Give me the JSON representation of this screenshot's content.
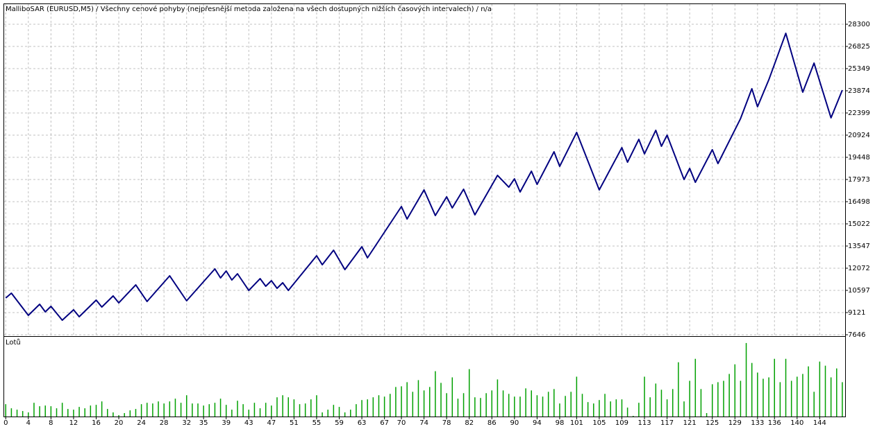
{
  "chart_data": [
    {
      "type": "line",
      "title": "MalliboSAR (EURUSD,M5) / Všechny cenové pohyby (nejpřesnější metoda založena na všech dostupných nižších časových intervalech) / n/a",
      "color": "#000080",
      "x": [
        0,
        1,
        4,
        6,
        7,
        8,
        10,
        12,
        13,
        16,
        17,
        19,
        20,
        23,
        25,
        29,
        32,
        37,
        38,
        39,
        40,
        41,
        43,
        45,
        46,
        47,
        48,
        49,
        50,
        55,
        56,
        58,
        60,
        63,
        64,
        70,
        71,
        74,
        76,
        78,
        79,
        81,
        83,
        87,
        89,
        90,
        91,
        93,
        94,
        97,
        98,
        101,
        105,
        109,
        110,
        112,
        113,
        115,
        116,
        117,
        120,
        121,
        122,
        125,
        126,
        130,
        132,
        133,
        135,
        138,
        141,
        143,
        146,
        148
      ],
      "values": [
        10089,
        10412,
        8937,
        9674,
        9167,
        9536,
        8614,
        9306,
        8845,
        9951,
        9490,
        10228,
        9767,
        10965,
        9859,
        11565,
        9905,
        12026,
        11426,
        11887,
        11288,
        11703,
        10596,
        11380,
        10873,
        11242,
        10735,
        11104,
        10596,
        12901,
        12302,
        13270,
        11979,
        13501,
        12763,
        16175,
        15345,
        17282,
        15575,
        16820,
        16082,
        17327,
        15621,
        18249,
        17465,
        18018,
        17143,
        18526,
        17650,
        19816,
        18848,
        21107,
        17281,
        20093,
        19125,
        20646,
        19678,
        21246,
        20185,
        20923,
        17973,
        18710,
        17788,
        19955,
        19033,
        22029,
        24012,
        22813,
        24610,
        27699,
        23781,
        25717,
        22075,
        23919
      ],
      "xlim": [
        -0.4,
        148.5
      ],
      "ylim": [
        7646,
        29683
      ],
      "yticks": [
        28300,
        26825,
        25349,
        23874,
        22399,
        20924,
        19448,
        17973,
        16498,
        15022,
        13547,
        12072,
        10597,
        9121,
        7646
      ],
      "grid": true
    },
    {
      "type": "bar",
      "title": "Lotů",
      "color": "#00a000",
      "x": [
        0,
        1,
        2,
        3,
        4,
        5,
        6,
        7,
        8,
        9,
        10,
        11,
        12,
        13,
        14,
        15,
        16,
        17,
        18,
        19,
        20,
        21,
        22,
        23,
        24,
        25,
        26,
        27,
        28,
        29,
        30,
        31,
        32,
        33,
        34,
        35,
        36,
        37,
        38,
        39,
        40,
        41,
        42,
        43,
        44,
        45,
        46,
        47,
        48,
        49,
        50,
        51,
        52,
        53,
        54,
        55,
        56,
        57,
        58,
        59,
        60,
        61,
        62,
        63,
        64,
        65,
        66,
        67,
        68,
        69,
        70,
        71,
        72,
        73,
        74,
        75,
        76,
        77,
        78,
        79,
        80,
        81,
        82,
        83,
        84,
        85,
        86,
        87,
        88,
        89,
        90,
        91,
        92,
        93,
        94,
        95,
        96,
        97,
        98,
        99,
        100,
        101,
        102,
        103,
        104,
        105,
        106,
        107,
        108,
        109,
        110,
        111,
        112,
        113,
        114,
        115,
        116,
        117,
        118,
        119,
        120,
        121,
        122,
        123,
        124,
        125,
        126,
        127,
        128,
        129,
        130,
        131,
        132,
        133,
        134,
        135,
        136,
        137,
        138,
        139,
        140,
        141,
        142,
        143,
        144,
        145,
        146,
        147,
        148
      ],
      "values": [
        18,
        12,
        10,
        8,
        6,
        20,
        15,
        16,
        15,
        12,
        20,
        11,
        10,
        14,
        12,
        16,
        17,
        22,
        11,
        6,
        2,
        5,
        9,
        11,
        18,
        20,
        19,
        22,
        19,
        22,
        26,
        20,
        31,
        19,
        19,
        16,
        18,
        20,
        26,
        17,
        10,
        23,
        18,
        10,
        20,
        12,
        20,
        16,
        28,
        31,
        28,
        25,
        18,
        19,
        25,
        31,
        6,
        10,
        17,
        14,
        6,
        10,
        18,
        24,
        25,
        28,
        31,
        29,
        33,
        43,
        44,
        50,
        36,
        53,
        38,
        43,
        66,
        49,
        34,
        57,
        26,
        34,
        69,
        28,
        27,
        34,
        38,
        54,
        38,
        33,
        29,
        29,
        41,
        38,
        31,
        29,
        36,
        40,
        19,
        30,
        36,
        58,
        33,
        21,
        19,
        24,
        33,
        22,
        25,
        25,
        13,
        1,
        20,
        58,
        28,
        48,
        39,
        25,
        40,
        79,
        22,
        52,
        84,
        40,
        5,
        47,
        50,
        52,
        62,
        76,
        52,
        107,
        78,
        64,
        55,
        57,
        84,
        50,
        84,
        52,
        58,
        62,
        73,
        36,
        80,
        74,
        57,
        70,
        50
      ],
      "xlim": [
        -0.4,
        148.5
      ],
      "ylim": [
        0,
        115
      ],
      "xticks": [
        0,
        4,
        8,
        12,
        16,
        20,
        24,
        28,
        32,
        35,
        39,
        43,
        47,
        51,
        55,
        59,
        63,
        67,
        70,
        74,
        78,
        82,
        86,
        90,
        94,
        98,
        101,
        105,
        109,
        113,
        117,
        121,
        125,
        129,
        133,
        136,
        140,
        144
      ]
    }
  ]
}
